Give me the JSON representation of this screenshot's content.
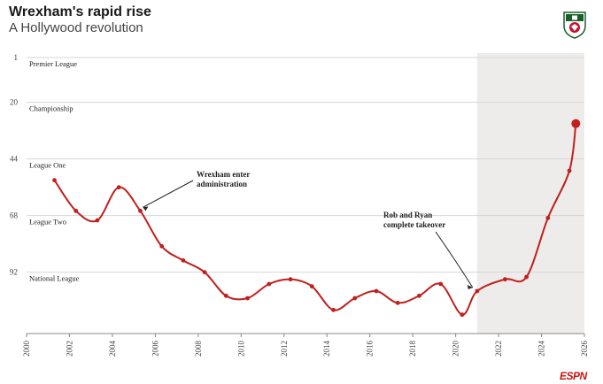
{
  "header": {
    "title": "Wrexham's rapid rise",
    "subtitle": "A Hollywood revolution"
  },
  "crest": {
    "icon": "wrexham-crest-icon",
    "colors": [
      "#c8102e",
      "#1a5e2a",
      "#ffffff"
    ]
  },
  "footer": {
    "brand": "ESPN"
  },
  "colors": {
    "line": "#c0201e",
    "highlight": "#eeeceb",
    "grid": "#d6d6d6"
  },
  "chart_data": {
    "type": "line",
    "title": "Wrexham's rapid rise",
    "subtitle": "A Hollywood revolution",
    "xlabel": "",
    "ylabel": "",
    "x_ticks": [
      2000,
      2002,
      2004,
      2006,
      2008,
      2010,
      2012,
      2014,
      2016,
      2018,
      2020,
      2022,
      2024,
      2026
    ],
    "xlim": [
      2000,
      2026
    ],
    "y_ticks": [
      1,
      20,
      44,
      68,
      92
    ],
    "ylim": [
      1,
      118
    ],
    "y_inverted": true,
    "grid": "horizontal",
    "league_labels": [
      {
        "name": "Premier League",
        "y": 1
      },
      {
        "name": "Championship",
        "y": 20
      },
      {
        "name": "League One",
        "y": 44
      },
      {
        "name": "League Two",
        "y": 68
      },
      {
        "name": "National League",
        "y": 92
      }
    ],
    "highlight_range": [
      2021,
      2026
    ],
    "series": [
      {
        "x": [
          2001.3,
          2002.3,
          2003.3,
          2004.3,
          2005.3,
          2006.3,
          2007.3,
          2008.3,
          2009.3,
          2010.3,
          2011.3,
          2012.3,
          2013.3,
          2014.3,
          2015.3,
          2016.3,
          2017.3,
          2018.3,
          2019.3,
          2020.3,
          2021.0,
          2022.3,
          2023.3,
          2024.3,
          2025.3,
          2025.6
        ],
        "y": [
          53,
          66,
          70,
          56,
          66,
          81,
          87,
          92,
          102,
          103,
          97,
          95,
          98,
          108,
          103,
          100,
          105,
          102,
          97,
          110,
          100,
          95,
          94,
          69,
          49,
          29
        ]
      }
    ],
    "annotations": [
      {
        "lines": [
          "Wrexham enter",
          "administration"
        ],
        "target_x": 2005.3,
        "target_y": 66
      },
      {
        "lines": [
          "Rob and Ryan",
          "complete takeover"
        ],
        "target_x": 2021.0,
        "target_y": 100
      }
    ]
  }
}
